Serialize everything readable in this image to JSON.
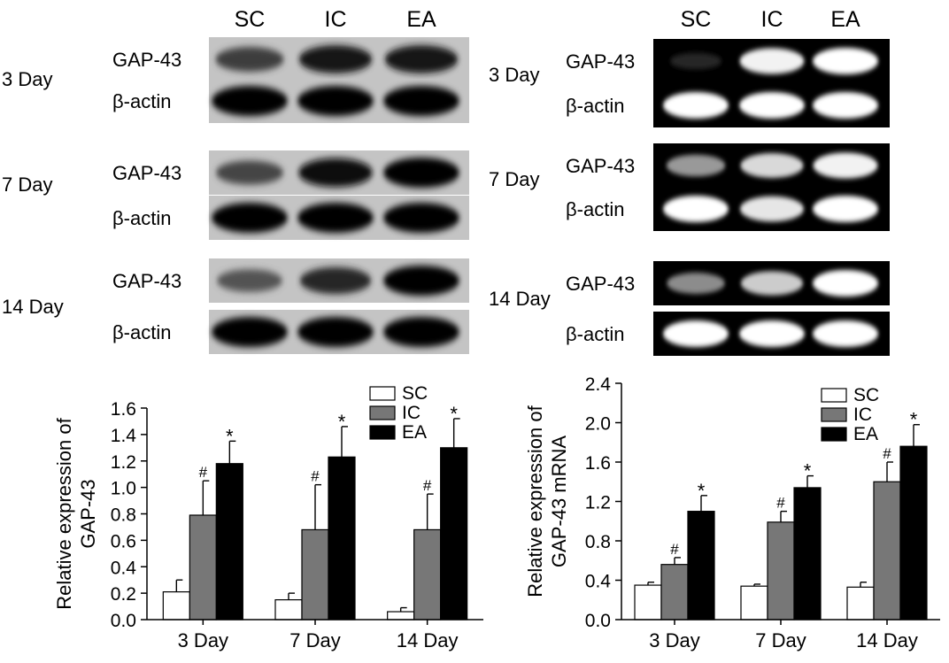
{
  "left_blot": {
    "lanes": [
      "SC",
      "IC",
      "EA"
    ],
    "rows": [
      {
        "day": "3 Day",
        "bands": [
          {
            "label": "GAP-43",
            "intensity": [
              0.6,
              0.85,
              0.85
            ]
          },
          {
            "label": "β-actin",
            "intensity": [
              1.0,
              1.0,
              1.0
            ]
          }
        ]
      },
      {
        "day": "7 Day",
        "bands": [
          {
            "label": "GAP-43",
            "intensity": [
              0.55,
              0.9,
              1.0
            ]
          },
          {
            "label": "β-actin",
            "intensity": [
              1.0,
              1.0,
              1.0
            ]
          }
        ]
      },
      {
        "day": "14 Day",
        "bands": [
          {
            "label": "GAP-43",
            "intensity": [
              0.45,
              0.75,
              1.0
            ]
          },
          {
            "label": "β-actin",
            "intensity": [
              1.0,
              1.0,
              1.0
            ]
          }
        ]
      }
    ]
  },
  "right_gel": {
    "lanes": [
      "SC",
      "IC",
      "EA"
    ],
    "rows": [
      {
        "day": "3 Day",
        "bands": [
          {
            "label": "GAP-43",
            "intensity": [
              0.15,
              0.95,
              1.0
            ]
          },
          {
            "label": "β-actin",
            "intensity": [
              1.0,
              1.0,
              1.0
            ]
          }
        ]
      },
      {
        "day": "7 Day",
        "bands": [
          {
            "label": "GAP-43",
            "intensity": [
              0.6,
              0.85,
              0.95
            ]
          },
          {
            "label": "β-actin",
            "intensity": [
              1.0,
              0.9,
              1.0
            ]
          }
        ]
      },
      {
        "day": "14 Day",
        "bands": [
          {
            "label": "GAP-43",
            "intensity": [
              0.55,
              0.8,
              1.0
            ]
          },
          {
            "label": "β-actin",
            "intensity": [
              1.0,
              1.0,
              1.0
            ]
          }
        ]
      }
    ]
  },
  "chart_data": [
    {
      "type": "bar",
      "categories": [
        "3 Day",
        "7 Day",
        "14 Day"
      ],
      "series": [
        {
          "name": "SC",
          "color": "#ffffff",
          "values": [
            0.21,
            0.15,
            0.06
          ],
          "errors": [
            0.09,
            0.05,
            0.03
          ],
          "markers": [
            "",
            "",
            ""
          ]
        },
        {
          "name": "IC",
          "color": "#777777",
          "values": [
            0.79,
            0.68,
            0.68
          ],
          "errors": [
            0.26,
            0.34,
            0.27
          ],
          "markers": [
            "#",
            "#",
            "#"
          ]
        },
        {
          "name": "EA",
          "color": "#000000",
          "values": [
            1.18,
            1.23,
            1.3
          ],
          "errors": [
            0.17,
            0.23,
            0.22
          ],
          "markers": [
            "*",
            "*",
            "*"
          ]
        }
      ],
      "title": "",
      "xlabel": "",
      "ylabel_lines": [
        "Relative expression of",
        "GAP-43"
      ],
      "ylim": [
        0,
        1.6
      ],
      "yticks": [
        0.0,
        0.2,
        0.4,
        0.6,
        0.8,
        1.0,
        1.2,
        1.4,
        1.6
      ],
      "tick_decimals": 1,
      "legend_position": "top-right",
      "grid": false
    },
    {
      "type": "bar",
      "categories": [
        "3 Day",
        "7 Day",
        "14 Day"
      ],
      "series": [
        {
          "name": "SC",
          "color": "#ffffff",
          "values": [
            0.35,
            0.34,
            0.33
          ],
          "errors": [
            0.03,
            0.02,
            0.05
          ],
          "markers": [
            "",
            "",
            ""
          ]
        },
        {
          "name": "IC",
          "color": "#777777",
          "values": [
            0.56,
            0.99,
            1.4
          ],
          "errors": [
            0.07,
            0.11,
            0.2
          ],
          "markers": [
            "#",
            "#",
            "#"
          ]
        },
        {
          "name": "EA",
          "color": "#000000",
          "values": [
            1.1,
            1.34,
            1.76
          ],
          "errors": [
            0.16,
            0.12,
            0.22
          ],
          "markers": [
            "*",
            "*",
            "*"
          ]
        }
      ],
      "title": "",
      "xlabel": "",
      "ylabel_lines": [
        "Relative expression of",
        "GAP-43 mRNA"
      ],
      "ylim": [
        0,
        2.4
      ],
      "yticks": [
        0.0,
        0.4,
        0.8,
        1.2,
        1.6,
        2.0,
        2.4
      ],
      "tick_decimals": 1,
      "legend_position": "top-right",
      "grid": false
    }
  ]
}
